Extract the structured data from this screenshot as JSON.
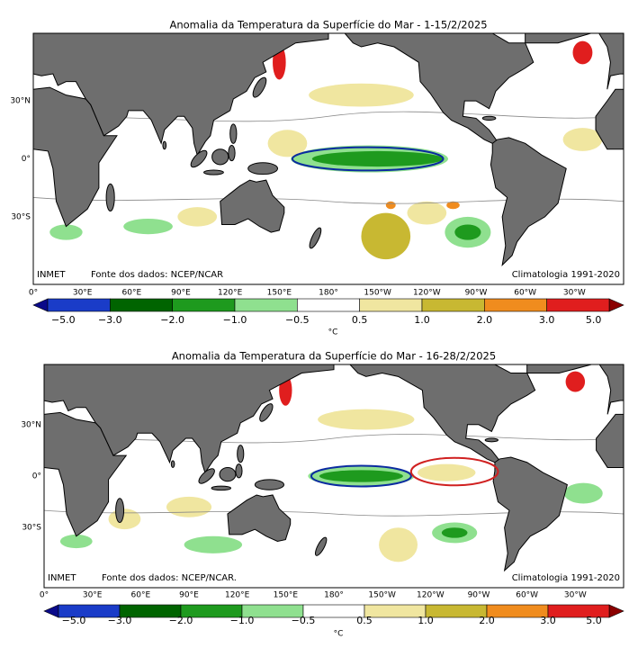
{
  "panels": [
    {
      "title": "Anomalia da Temperatura da Superfície do Mar - 1-15/2/2025",
      "lat_labels": [
        "30°N",
        "0°",
        "30°S"
      ],
      "lon_labels": [
        "0°",
        "30°E",
        "60°E",
        "90°E",
        "120°E",
        "150°E",
        "180°",
        "150°W",
        "120°W",
        "90°W",
        "60°W",
        "30°W"
      ],
      "credits": {
        "institution": "INMET",
        "data_source": "Fonte dos dados: NCEP/NCAR",
        "climatology": "Climatologia 1991-2020"
      },
      "colorbar": {
        "labels": [
          "−5.0",
          "−3.0",
          "−2.0",
          "−1.0",
          "−0.5",
          "0.5",
          "1.0",
          "2.0",
          "3.0",
          "5.0"
        ],
        "unit": "°C"
      }
    },
    {
      "title": "Anomalia da Temperatura da Superfície do Mar - 16-28/2/2025",
      "lat_labels": [
        "30°N",
        "0°",
        "30°S"
      ],
      "lon_labels": [
        "0°",
        "30°E",
        "60°E",
        "90°E",
        "120°E",
        "150°E",
        "180°",
        "150°W",
        "120°W",
        "90°W",
        "60°W",
        "30°W"
      ],
      "credits": {
        "institution": "INMET",
        "data_source": "Fonte dos dados: NCEP/NCAR.",
        "climatology": "Climatologia 1991-2020"
      },
      "colorbar": {
        "labels": [
          "−5.0",
          "−3.0",
          "−2.0",
          "−1.0",
          "−0.5",
          "0.5",
          "1.0",
          "2.0",
          "3.0",
          "5.0"
        ],
        "unit": "°C"
      }
    }
  ],
  "colorbar_colors": [
    "#0a0a8a",
    "#1a3cc8",
    "#006400",
    "#1e9a1e",
    "#8fe08f",
    "#ffffff",
    "#f0e6a0",
    "#c8b832",
    "#f08c1e",
    "#e01e1e",
    "#8b0000"
  ]
}
